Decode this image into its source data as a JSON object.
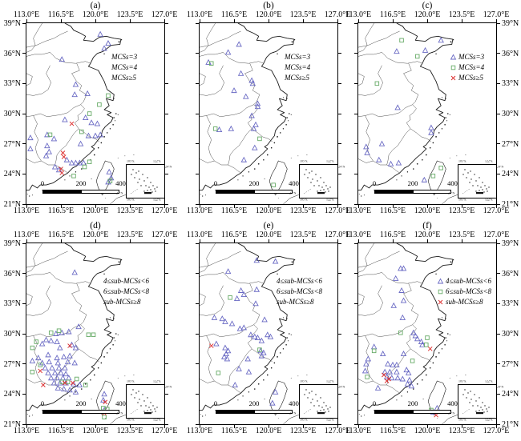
{
  "figure_colors": {
    "triangle": "#6a6ac4",
    "square": "#66aa66",
    "cross": "#dd3333",
    "map_line": "#1c1c1c",
    "province_line": "#3a3a3a"
  },
  "axes": {
    "lon_tick_labels": [
      "113.0°E",
      "116.5°E",
      "120.0°E",
      "123.5°E",
      "127.0°E"
    ],
    "lon_tick_values": [
      113,
      116.5,
      120,
      123.5,
      127
    ],
    "lat_tick_labels": [
      "39°N",
      "36°N",
      "33°N",
      "30°N",
      "27°N",
      "24°N",
      "21°N"
    ],
    "lat_tick_values": [
      39,
      36,
      33,
      30,
      27,
      24,
      21
    ],
    "lon_range": [
      113,
      127
    ],
    "lat_range": [
      21,
      39
    ]
  },
  "scalebar": {
    "labels": [
      "0",
      "200",
      "400 km"
    ]
  },
  "inset": {
    "labels": {
      "top_left": "105°E",
      "top_right": "122°E",
      "right_top": "24°N",
      "left_bottom": "27°N",
      "bottom_left": "105°E",
      "bottom_right": "122°E"
    }
  },
  "legend_row1": [
    {
      "symbol": "triangle",
      "label": "MCSs=3"
    },
    {
      "symbol": "square",
      "label": "MCSs=4"
    },
    {
      "symbol": "cross",
      "label": "MCSs≥5"
    }
  ],
  "legend_row2": [
    {
      "symbol": "triangle",
      "label": "4≤sub-MCSs<6"
    },
    {
      "symbol": "square",
      "label": "6≤sub-MCSs<8"
    },
    {
      "symbol": "cross",
      "label": "sub-MCSs≥8"
    }
  ],
  "panels": [
    {
      "id": "a",
      "title": "(a)",
      "lat_labels": "left",
      "legend_symbols": false,
      "legend": "row1",
      "markers": {
        "triangle": [
          [
            120.5,
            37.9
          ],
          [
            121.3,
            37.0
          ],
          [
            120.9,
            36.5
          ],
          [
            116.6,
            35.4
          ],
          [
            118.0,
            32.9
          ],
          [
            117.9,
            31.9
          ],
          [
            119.2,
            32.0
          ],
          [
            116.9,
            29.4
          ],
          [
            119.0,
            29.6
          ],
          [
            119.6,
            29.1
          ],
          [
            120.2,
            29.0
          ],
          [
            115.1,
            27.9
          ],
          [
            115.8,
            27.5
          ],
          [
            113.4,
            27.6
          ],
          [
            118.5,
            27.0
          ],
          [
            119.3,
            27.8
          ],
          [
            120.0,
            27.8
          ],
          [
            120.5,
            27.9
          ],
          [
            115.1,
            26.8
          ],
          [
            115.3,
            26.2
          ],
          [
            113.4,
            26.5
          ],
          [
            115.0,
            25.8
          ],
          [
            117.1,
            25.4
          ],
          [
            117.6,
            25.1
          ],
          [
            118.0,
            25.1
          ],
          [
            118.4,
            25.1
          ],
          [
            118.8,
            25.1
          ],
          [
            115.9,
            24.7
          ],
          [
            116.3,
            24.4
          ],
          [
            121.4,
            24.2
          ],
          [
            121.6,
            23.6
          ],
          [
            121.3,
            23.2
          ]
        ],
        "square": [
          [
            121.3,
            31.8
          ],
          [
            120.4,
            30.9
          ],
          [
            119.4,
            30.0
          ],
          [
            118.6,
            28.2
          ],
          [
            115.4,
            27.9
          ],
          [
            119.4,
            25.2
          ],
          [
            118.9,
            24.7
          ],
          [
            117.8,
            23.8
          ],
          [
            121.5,
            23.3
          ]
        ],
        "cross": [
          [
            117.6,
            29.0
          ],
          [
            116.7,
            26.1
          ],
          [
            116.8,
            25.7
          ],
          [
            116.5,
            24.5
          ],
          [
            116.6,
            24.1
          ]
        ]
      }
    },
    {
      "id": "b",
      "title": "(b)",
      "lat_labels": "none",
      "legend_symbols": false,
      "legend": "row1",
      "markers": {
        "triangle": [
          [
            117.0,
            36.9
          ],
          [
            115.9,
            36.1
          ],
          [
            113.9,
            35.1
          ],
          [
            117.2,
            34.0
          ],
          [
            118.3,
            33.3
          ],
          [
            118.4,
            33.0
          ],
          [
            116.5,
            32.3
          ],
          [
            117.7,
            31.7
          ],
          [
            118.9,
            31.0
          ],
          [
            118.9,
            30.7
          ],
          [
            118.3,
            29.8
          ],
          [
            115.0,
            28.4
          ],
          [
            116.2,
            28.5
          ],
          [
            118.7,
            28.9
          ],
          [
            118.5,
            28.5
          ],
          [
            118.6,
            26.6
          ],
          [
            117.5,
            25.4
          ]
        ],
        "square": [
          [
            114.2,
            35.0
          ],
          [
            114.6,
            28.5
          ],
          [
            119.1,
            27.5
          ],
          [
            120.5,
            22.9
          ]
        ],
        "cross": []
      }
    },
    {
      "id": "c",
      "title": "(c)",
      "lat_labels": "right",
      "legend_symbols": true,
      "legend": "row1",
      "markers": {
        "triangle": [
          [
            121.4,
            37.3
          ],
          [
            116.9,
            36.2
          ],
          [
            119.8,
            36.3
          ],
          [
            117.0,
            30.6
          ],
          [
            120.4,
            28.6
          ],
          [
            120.4,
            28.1
          ],
          [
            115.4,
            27.0
          ],
          [
            113.8,
            26.7
          ],
          [
            113.9,
            26.1
          ],
          [
            115.1,
            25.4
          ],
          [
            116.3,
            25.0
          ],
          [
            117.1,
            25.1
          ],
          [
            119.7,
            23.4
          ]
        ],
        "square": [
          [
            117.4,
            37.3
          ],
          [
            119.0,
            35.7
          ],
          [
            114.9,
            33.0
          ],
          [
            121.4,
            24.6
          ],
          [
            120.6,
            23.8
          ]
        ],
        "cross": []
      }
    },
    {
      "id": "d",
      "title": "(d)",
      "lat_labels": "left",
      "legend_symbols": false,
      "legend": "row2",
      "markers": {
        "triangle": [
          [
            117.9,
            36.1
          ],
          [
            118.3,
            30.7
          ],
          [
            116.0,
            30.0
          ],
          [
            116.6,
            30.1
          ],
          [
            117.3,
            30.2
          ],
          [
            115.0,
            29.4
          ],
          [
            115.5,
            29.3
          ],
          [
            114.6,
            29.0
          ],
          [
            116.1,
            29.2
          ],
          [
            116.4,
            28.6
          ],
          [
            117.6,
            28.9
          ],
          [
            118.0,
            28.6
          ],
          [
            115.2,
            27.9
          ],
          [
            114.2,
            27.6
          ],
          [
            116.1,
            27.6
          ],
          [
            116.8,
            27.7
          ],
          [
            117.4,
            27.8
          ],
          [
            113.6,
            27.3
          ],
          [
            114.6,
            27.1
          ],
          [
            115.3,
            27.2
          ],
          [
            116.2,
            27.1
          ],
          [
            117.2,
            27.2
          ],
          [
            117.9,
            27.1
          ],
          [
            114.9,
            26.6
          ],
          [
            115.6,
            26.6
          ],
          [
            116.3,
            26.6
          ],
          [
            116.9,
            26.6
          ],
          [
            115.2,
            26.1
          ],
          [
            115.9,
            26.1
          ],
          [
            116.5,
            26.1
          ],
          [
            117.0,
            26.0
          ],
          [
            115.5,
            25.6
          ],
          [
            116.1,
            25.6
          ],
          [
            116.7,
            25.6
          ],
          [
            117.3,
            25.6
          ],
          [
            115.8,
            25.1
          ],
          [
            116.4,
            25.1
          ],
          [
            117.0,
            25.1
          ],
          [
            117.8,
            25.0
          ],
          [
            118.4,
            24.9
          ],
          [
            116.2,
            24.6
          ],
          [
            116.8,
            24.5
          ],
          [
            117.4,
            24.4
          ],
          [
            118.0,
            24.2
          ],
          [
            120.9,
            24.0
          ],
          [
            120.8,
            23.4
          ],
          [
            120.9,
            22.4
          ]
        ],
        "square": [
          [
            115.5,
            30.1
          ],
          [
            116.3,
            30.3
          ],
          [
            119.3,
            29.9
          ],
          [
            119.8,
            29.9
          ],
          [
            114.0,
            29.2
          ],
          [
            113.6,
            28.6
          ],
          [
            114.4,
            26.9
          ],
          [
            113.6,
            26.2
          ],
          [
            116.6,
            25.2
          ],
          [
            117.2,
            25.2
          ],
          [
            118.1,
            25.5
          ],
          [
            119.0,
            24.9
          ],
          [
            120.8,
            22.6
          ],
          [
            121.2,
            22.5
          ],
          [
            120.9,
            21.7
          ]
        ],
        "cross": [
          [
            117.4,
            28.8
          ],
          [
            114.4,
            26.3
          ],
          [
            116.9,
            25.1
          ],
          [
            117.7,
            25.1
          ],
          [
            114.7,
            24.9
          ],
          [
            121.0,
            23.2
          ],
          [
            120.9,
            22.1
          ]
        ]
      }
    },
    {
      "id": "e",
      "title": "(e)",
      "lat_labels": "none",
      "legend_symbols": false,
      "legend": "row2",
      "markers": {
        "triangle": [
          [
            118.8,
            37.3
          ],
          [
            120.7,
            37.2
          ],
          [
            115.9,
            36.2
          ],
          [
            117.2,
            34.3
          ],
          [
            117.5,
            33.9
          ],
          [
            118.8,
            34.4
          ],
          [
            116.8,
            33.5
          ],
          [
            118.7,
            33.0
          ],
          [
            114.5,
            31.6
          ],
          [
            115.3,
            31.5
          ],
          [
            115.6,
            31.2
          ],
          [
            116.3,
            31.0
          ],
          [
            117.1,
            30.5
          ],
          [
            117.5,
            30.6
          ],
          [
            119.6,
            31.4
          ],
          [
            118.2,
            29.9
          ],
          [
            118.6,
            29.7
          ],
          [
            118.9,
            29.6
          ],
          [
            119.9,
            29.9
          ],
          [
            120.2,
            29.7
          ],
          [
            119.3,
            29.3
          ],
          [
            114.7,
            29.0
          ],
          [
            115.6,
            28.6
          ],
          [
            115.9,
            28.3
          ],
          [
            115.7,
            28.0
          ],
          [
            115.5,
            27.7
          ],
          [
            115.8,
            27.5
          ],
          [
            117.9,
            27.5
          ],
          [
            119.2,
            28.3
          ],
          [
            119.5,
            28.1
          ],
          [
            119.3,
            27.8
          ],
          [
            117.0,
            26.5
          ],
          [
            118.0,
            26.2
          ],
          [
            116.6,
            24.9
          ],
          [
            120.7,
            24.2
          ],
          [
            120.4,
            23.1
          ]
        ],
        "square": [
          [
            116.1,
            33.6
          ],
          [
            119.1,
            28.4
          ],
          [
            114.9,
            26.1
          ]
        ],
        "cross": [
          [
            114.2,
            28.8
          ]
        ]
      }
    },
    {
      "id": "f",
      "title": "(f)",
      "lat_labels": "right",
      "legend_symbols": true,
      "legend": "row2",
      "markers": {
        "triangle": [
          [
            117.3,
            36.5
          ],
          [
            117.6,
            36.5
          ],
          [
            116.8,
            35.5
          ],
          [
            117.4,
            34.3
          ],
          [
            117.6,
            33.3
          ],
          [
            116.6,
            32.8
          ],
          [
            117.5,
            31.6
          ],
          [
            118.6,
            30.1
          ],
          [
            118.8,
            29.8
          ],
          [
            119.0,
            29.5
          ],
          [
            119.4,
            29.2
          ],
          [
            119.5,
            28.9
          ],
          [
            114.6,
            28.7
          ],
          [
            115.5,
            28.0
          ],
          [
            117.6,
            28.0
          ],
          [
            114.0,
            27.5
          ],
          [
            113.8,
            27.0
          ],
          [
            116.0,
            27.0
          ],
          [
            116.5,
            26.9
          ],
          [
            116.9,
            26.9
          ],
          [
            113.7,
            26.3
          ],
          [
            115.7,
            26.2
          ],
          [
            116.2,
            26.2
          ],
          [
            116.9,
            26.2
          ],
          [
            117.9,
            26.4
          ],
          [
            118.1,
            26.1
          ],
          [
            115.9,
            25.7
          ],
          [
            116.4,
            25.6
          ],
          [
            117.0,
            25.6
          ],
          [
            117.5,
            25.5
          ],
          [
            118.2,
            25.4
          ],
          [
            118.0,
            25.0
          ],
          [
            118.4,
            24.8
          ],
          [
            115.0,
            24.6
          ],
          [
            121.0,
            22.6
          ],
          [
            120.6,
            22.2
          ]
        ],
        "square": [
          [
            117.3,
            30.1
          ],
          [
            120.0,
            29.6
          ],
          [
            119.9,
            28.9
          ],
          [
            118.5,
            27.3
          ],
          [
            114.6,
            28.3
          ],
          [
            113.9,
            25.7
          ],
          [
            120.4,
            22.4
          ]
        ],
        "cross": [
          [
            120.3,
            28.5
          ],
          [
            115.6,
            25.9
          ],
          [
            116.1,
            25.5
          ],
          [
            115.9,
            25.3
          ],
          [
            120.9,
            21.9
          ]
        ]
      }
    }
  ]
}
